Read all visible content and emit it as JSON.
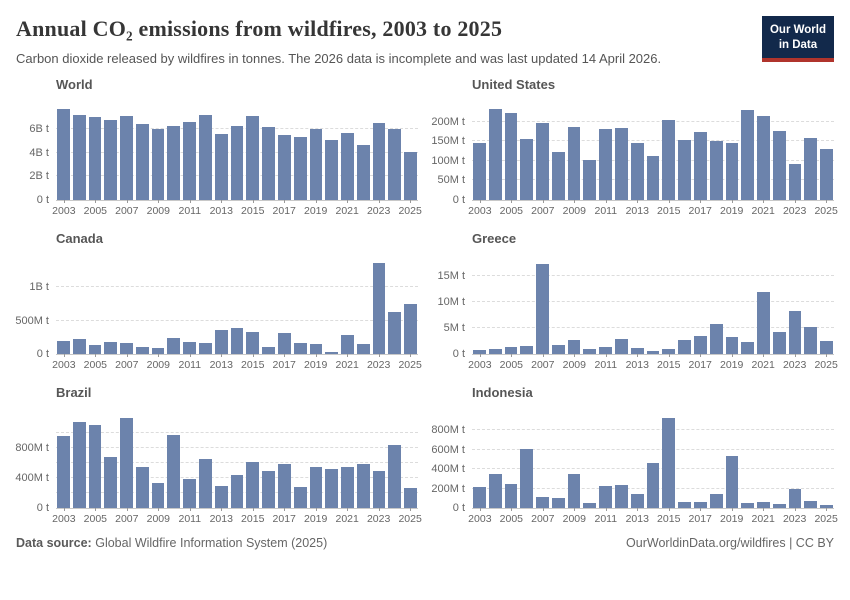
{
  "header": {
    "title": "Annual CO₂ emissions from wildfires, 2003 to 2025",
    "subtitle": "Carbon dioxide released by wildfires in tonnes. The 2026 data is incomplete and was last updated 14 April 2026.",
    "logo": {
      "line1": "Our World",
      "line2": "in Data"
    }
  },
  "footer": {
    "source_label": "Data source:",
    "source_text": "Global Wildfire Information System (2025)",
    "right_text": "OurWorldinData.org/wildfires | CC BY"
  },
  "colors": {
    "bar": "#6c83ac",
    "gridline": "#dcdcdc",
    "baseline": "#c8c8c8",
    "axis_text": "#666666",
    "facet_title": "#565656",
    "page_title": "#363636",
    "subtitle": "#555555",
    "logo_bg": "#12294b",
    "logo_accent": "#b0342c"
  },
  "years": [
    2003,
    2004,
    2005,
    2006,
    2007,
    2008,
    2009,
    2010,
    2011,
    2012,
    2013,
    2014,
    2015,
    2016,
    2017,
    2018,
    2019,
    2020,
    2021,
    2022,
    2023,
    2024,
    2025
  ],
  "xtick_labels": [
    2003,
    2005,
    2007,
    2009,
    2011,
    2013,
    2015,
    2017,
    2019,
    2021,
    2023,
    2025
  ],
  "chart_data": [
    {
      "type": "bar",
      "title": "World",
      "slug": "world",
      "unit": "million tonnes of CO₂",
      "x": [
        2003,
        2004,
        2005,
        2006,
        2007,
        2008,
        2009,
        2010,
        2011,
        2012,
        2013,
        2014,
        2015,
        2016,
        2017,
        2018,
        2019,
        2020,
        2021,
        2022,
        2023,
        2024,
        2025
      ],
      "values": [
        7700,
        7200,
        7000,
        6800,
        7100,
        6450,
        6000,
        6250,
        6650,
        7250,
        5600,
        6300,
        7100,
        6150,
        5550,
        5350,
        6050,
        5050,
        5700,
        4700,
        6550,
        6050,
        4100
      ],
      "ylim": [
        0,
        8400
      ],
      "yticks": [
        {
          "v": 0,
          "label": "0 t"
        },
        {
          "v": 2000,
          "label": "2B t"
        },
        {
          "v": 4000,
          "label": "4B t"
        },
        {
          "v": 6000,
          "label": "6B t"
        }
      ],
      "grid": "dashed-horizontal",
      "legend": "none"
    },
    {
      "type": "bar",
      "title": "United States",
      "slug": "united-states",
      "unit": "million tonnes of CO₂",
      "x": [
        2003,
        2004,
        2005,
        2006,
        2007,
        2008,
        2009,
        2010,
        2011,
        2012,
        2013,
        2014,
        2015,
        2016,
        2017,
        2018,
        2019,
        2020,
        2021,
        2022,
        2023,
        2024,
        2025
      ],
      "values": [
        145,
        233,
        222,
        156,
        198,
        123,
        188,
        102,
        181,
        185,
        147,
        114,
        204,
        154,
        174,
        152,
        145,
        230,
        215,
        177,
        91,
        158,
        130
      ],
      "ylim": [
        0,
        254
      ],
      "yticks": [
        {
          "v": 0,
          "label": "0 t"
        },
        {
          "v": 50,
          "label": "50M t"
        },
        {
          "v": 100,
          "label": "100M t"
        },
        {
          "v": 150,
          "label": "150M t"
        },
        {
          "v": 200,
          "label": "200M t"
        }
      ],
      "grid": "dashed-horizontal",
      "legend": "none"
    },
    {
      "type": "bar",
      "title": "Canada",
      "slug": "canada",
      "unit": "million tonnes of CO₂",
      "x": [
        2003,
        2004,
        2005,
        2006,
        2007,
        2008,
        2009,
        2010,
        2011,
        2012,
        2013,
        2014,
        2015,
        2016,
        2017,
        2018,
        2019,
        2020,
        2021,
        2022,
        2023,
        2024,
        2025
      ],
      "values": [
        195,
        230,
        130,
        185,
        170,
        105,
        85,
        235,
        175,
        160,
        355,
        395,
        330,
        105,
        310,
        160,
        145,
        30,
        290,
        150,
        1355,
        630,
        745
      ],
      "ylim": [
        0,
        1480
      ],
      "yticks": [
        {
          "v": 0,
          "label": "0 t"
        },
        {
          "v": 500,
          "label": "500M t"
        },
        {
          "v": 1000,
          "label": "1B t"
        }
      ],
      "grid": "dashed-horizontal",
      "legend": "none"
    },
    {
      "type": "bar",
      "title": "Greece",
      "slug": "greece",
      "unit": "million tonnes of CO₂",
      "x": [
        2003,
        2004,
        2005,
        2006,
        2007,
        2008,
        2009,
        2010,
        2011,
        2012,
        2013,
        2014,
        2015,
        2016,
        2017,
        2018,
        2019,
        2020,
        2021,
        2022,
        2023,
        2024,
        2025
      ],
      "values": [
        0.7,
        0.9,
        1.4,
        1.5,
        17.3,
        1.8,
        2.6,
        1.0,
        1.4,
        2.9,
        1.2,
        0.6,
        0.9,
        2.7,
        3.5,
        5.8,
        3.3,
        2.3,
        11.8,
        4.3,
        8.3,
        5.1,
        2.4
      ],
      "ylim": [
        0,
        19
      ],
      "yticks": [
        {
          "v": 0,
          "label": "0 t"
        },
        {
          "v": 5,
          "label": "5M t"
        },
        {
          "v": 10,
          "label": "10M t"
        },
        {
          "v": 15,
          "label": "15M t"
        }
      ],
      "grid": "dashed-horizontal",
      "legend": "none"
    },
    {
      "type": "bar",
      "title": "Brazil",
      "slug": "brazil",
      "unit": "million tonnes of CO₂",
      "x": [
        2003,
        2004,
        2005,
        2006,
        2007,
        2008,
        2009,
        2010,
        2011,
        2012,
        2013,
        2014,
        2015,
        2016,
        2017,
        2018,
        2019,
        2020,
        2021,
        2022,
        2023,
        2024,
        2025
      ],
      "values": [
        960,
        1150,
        1100,
        680,
        1200,
        550,
        330,
        975,
        385,
        650,
        290,
        445,
        615,
        490,
        580,
        280,
        550,
        520,
        550,
        580,
        490,
        845,
        260
      ],
      "ylim": [
        0,
        1320
      ],
      "yticks": [
        {
          "v": 0,
          "label": "0 t"
        },
        {
          "v": 200,
          "label": ""
        },
        {
          "v": 400,
          "label": "400M t"
        },
        {
          "v": 600,
          "label": ""
        },
        {
          "v": 800,
          "label": "800M t"
        },
        {
          "v": 1000,
          "label": ""
        }
      ],
      "grid": "dashed-horizontal",
      "legend": "none"
    },
    {
      "type": "bar",
      "title": "Indonesia",
      "slug": "indonesia",
      "unit": "million tonnes of CO₂",
      "x": [
        2003,
        2004,
        2005,
        2006,
        2007,
        2008,
        2009,
        2010,
        2011,
        2012,
        2013,
        2014,
        2015,
        2016,
        2017,
        2018,
        2019,
        2020,
        2021,
        2022,
        2023,
        2024,
        2025
      ],
      "values": [
        220,
        350,
        245,
        605,
        110,
        105,
        345,
        50,
        225,
        235,
        145,
        465,
        930,
        65,
        60,
        145,
        535,
        50,
        60,
        40,
        200,
        72,
        35
      ],
      "ylim": [
        0,
        1020
      ],
      "yticks": [
        {
          "v": 0,
          "label": "0 t"
        },
        {
          "v": 200,
          "label": "200M t"
        },
        {
          "v": 400,
          "label": "400M t"
        },
        {
          "v": 600,
          "label": "600M t"
        },
        {
          "v": 800,
          "label": "800M t"
        }
      ],
      "grid": "dashed-horizontal",
      "legend": "none"
    }
  ]
}
